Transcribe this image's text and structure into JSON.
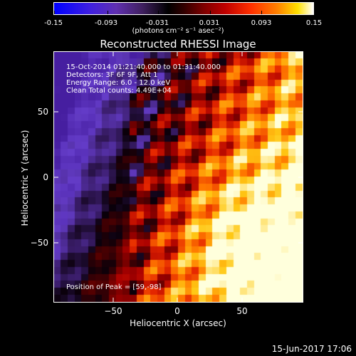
{
  "colorbar": {
    "ticks": [
      "-0.15",
      "-0.093",
      "-0.031",
      "0.031",
      "0.093",
      "0.15"
    ],
    "units": "(photons cm⁻² s⁻¹ asec⁻²)",
    "range": [
      -0.15,
      0.15
    ]
  },
  "plot": {
    "title": "Reconstructed RHESSI Image",
    "info_lines": [
      "15-Oct-2014 01:21:40.000 to 01:31:40.000",
      "Detectors: 3F 6F 9F, Att 1",
      "Energy Range: 6.0 - 12.0 keV",
      "Clean     Total counts: 4.49E+04"
    ],
    "peak_text": "Position of Peak = [59,-98]",
    "footer_date": "15-Jun-2017 17:06"
  },
  "chart_data": {
    "type": "heatmap",
    "title": "Reconstructed RHESSI Image",
    "xlabel": "Heliocentric X (arcsec)",
    "ylabel": "Heliocentric Y (arcsec)",
    "xlim": [
      -97,
      97
    ],
    "ylim": [
      -97,
      97
    ],
    "x_ticks": [
      -50,
      0,
      50
    ],
    "x_tick_labels": [
      "−50",
      "0",
      "50"
    ],
    "y_ticks": [
      50,
      0,
      -50
    ],
    "y_tick_labels": [
      "50",
      "0",
      "−50"
    ],
    "colormap_range": [
      -0.15,
      0.15
    ],
    "peak_position": [
      59,
      -98
    ]
  }
}
